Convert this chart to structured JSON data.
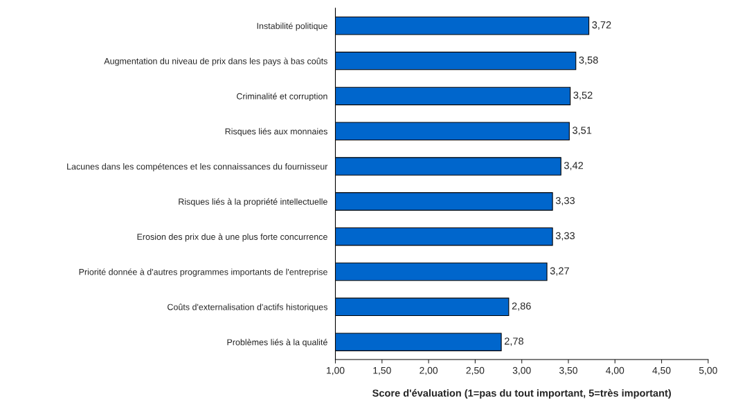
{
  "chart_data": {
    "type": "bar",
    "orientation": "horizontal",
    "xlabel": "Score d'évaluation (1=pas du tout important, 5=très important)",
    "categories": [
      "Instabilité politique",
      "Augmentation du niveau de prix dans les pays à bas coûts",
      "Criminalité et corruption",
      "Risques liés aux monnaies",
      "Lacunes dans les compétences et les connaissances du fournisseur",
      "Risques liés à la propriété intellectuelle",
      "Erosion des prix due à une plus forte concurrence",
      "Priorité donnée à d'autres programmes importants de l'entreprise",
      "Coûts d'externalisation d'actifs historiques",
      "Problèmes liés à la qualité"
    ],
    "values": [
      3.72,
      3.58,
      3.52,
      3.51,
      3.42,
      3.33,
      3.33,
      3.27,
      2.86,
      2.78
    ],
    "value_labels": [
      "3,72",
      "3,58",
      "3,52",
      "3,51",
      "3,42",
      "3,33",
      "3,33",
      "3,27",
      "2,86",
      "2,78"
    ],
    "color": "#0066cc",
    "xlim": [
      1,
      5
    ],
    "xticks": [
      {
        "value": 1,
        "label": "1,00"
      },
      {
        "value": 1.5,
        "label": "1,50"
      },
      {
        "value": 2,
        "label": "2,00"
      },
      {
        "value": 2.5,
        "label": "2,50"
      },
      {
        "value": 3,
        "label": "3,00"
      },
      {
        "value": 3.5,
        "label": "3,50"
      },
      {
        "value": 4,
        "label": "4,00"
      },
      {
        "value": 4.5,
        "label": "4,50"
      },
      {
        "value": 5,
        "label": "5,00"
      }
    ],
    "grid": false,
    "legend": false
  }
}
